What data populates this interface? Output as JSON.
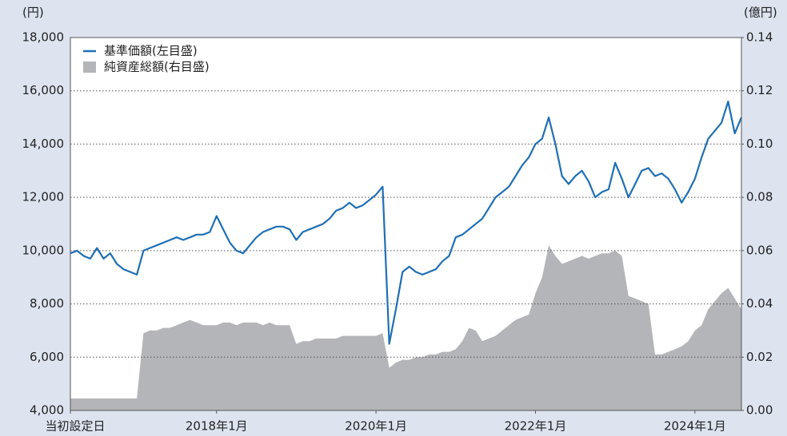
{
  "chart_data": {
    "type": "line-area",
    "y_label": "(円)",
    "y2_label": "(億円)",
    "x": [
      "2016-03",
      "2016-04",
      "2016-05",
      "2016-06",
      "2016-07",
      "2016-08",
      "2016-09",
      "2016-10",
      "2016-11",
      "2016-12",
      "2017-01",
      "2017-02",
      "2017-03",
      "2017-04",
      "2017-05",
      "2017-06",
      "2017-07",
      "2017-08",
      "2017-09",
      "2017-10",
      "2017-11",
      "2017-12",
      "2018-01",
      "2018-02",
      "2018-03",
      "2018-04",
      "2018-05",
      "2018-06",
      "2018-07",
      "2018-08",
      "2018-09",
      "2018-10",
      "2018-11",
      "2018-12",
      "2019-01",
      "2019-02",
      "2019-03",
      "2019-04",
      "2019-05",
      "2019-06",
      "2019-07",
      "2019-08",
      "2019-09",
      "2019-10",
      "2019-11",
      "2019-12",
      "2020-01",
      "2020-02",
      "2020-03",
      "2020-04",
      "2020-05",
      "2020-06",
      "2020-07",
      "2020-08",
      "2020-09",
      "2020-10",
      "2020-11",
      "2020-12",
      "2021-01",
      "2021-02",
      "2021-03",
      "2021-04",
      "2021-05",
      "2021-06",
      "2021-07",
      "2021-08",
      "2021-09",
      "2021-10",
      "2021-11",
      "2021-12",
      "2022-01",
      "2022-02",
      "2022-03",
      "2022-04",
      "2022-05",
      "2022-06",
      "2022-07",
      "2022-08",
      "2022-09",
      "2022-10",
      "2022-11",
      "2022-12",
      "2023-01",
      "2023-02",
      "2023-03",
      "2023-04",
      "2023-05",
      "2023-06",
      "2023-07",
      "2023-08",
      "2023-09",
      "2023-10",
      "2023-11",
      "2023-12",
      "2024-01",
      "2024-02",
      "2024-03",
      "2024-04",
      "2024-05",
      "2024-06",
      "2024-07",
      "2024-08"
    ],
    "series": [
      {
        "name": "基準価額(左目盛)",
        "color": "#1f6fb5",
        "axis": "y",
        "kind": "line",
        "values": [
          9900,
          10000,
          9800,
          9700,
          10100,
          9700,
          9900,
          9500,
          9300,
          9200,
          9100,
          10000,
          10100,
          10200,
          10300,
          10400,
          10500,
          10400,
          10500,
          10600,
          10600,
          10700,
          11300,
          10800,
          10300,
          10000,
          9900,
          10200,
          10500,
          10700,
          10800,
          10900,
          10900,
          10800,
          10400,
          10700,
          10800,
          10900,
          11000,
          11200,
          11500,
          11600,
          11800,
          11600,
          11700,
          11900,
          12100,
          12400,
          6500,
          7800,
          9200,
          9400,
          9200,
          9100,
          9200,
          9300,
          9600,
          9800,
          10500,
          10600,
          10800,
          11000,
          11200,
          11600,
          12000,
          12200,
          12400,
          12800,
          13200,
          13500,
          14000,
          14200,
          15000,
          14000,
          12800,
          12500,
          12800,
          13000,
          12600,
          12000,
          12200,
          12300,
          13300,
          12700,
          12000,
          12500,
          13000,
          13100,
          12800,
          12900,
          12700,
          12300,
          11800,
          12200,
          12700,
          13500,
          14200,
          14500,
          14800,
          15600,
          14400,
          15000
        ]
      },
      {
        "name": "純資産総額(右目盛)",
        "color": "#b4b5b8",
        "axis": "y2",
        "kind": "area",
        "values": [
          0.0045,
          0.0045,
          0.0045,
          0.0045,
          0.0045,
          0.0045,
          0.0045,
          0.0045,
          0.0045,
          0.0045,
          0.0045,
          0.029,
          0.03,
          0.03,
          0.031,
          0.031,
          0.032,
          0.033,
          0.034,
          0.033,
          0.032,
          0.032,
          0.032,
          0.033,
          0.033,
          0.032,
          0.033,
          0.033,
          0.033,
          0.032,
          0.033,
          0.032,
          0.032,
          0.032,
          0.025,
          0.026,
          0.026,
          0.027,
          0.027,
          0.027,
          0.027,
          0.028,
          0.028,
          0.028,
          0.028,
          0.028,
          0.028,
          0.029,
          0.016,
          0.018,
          0.019,
          0.019,
          0.02,
          0.02,
          0.021,
          0.021,
          0.022,
          0.022,
          0.023,
          0.026,
          0.031,
          0.03,
          0.026,
          0.027,
          0.028,
          0.03,
          0.032,
          0.034,
          0.035,
          0.036,
          0.044,
          0.05,
          0.062,
          0.058,
          0.055,
          0.056,
          0.057,
          0.058,
          0.057,
          0.058,
          0.059,
          0.059,
          0.06,
          0.058,
          0.043,
          0.042,
          0.041,
          0.04,
          0.021,
          0.021,
          0.022,
          0.023,
          0.024,
          0.026,
          0.03,
          0.032,
          0.038,
          0.041,
          0.044,
          0.046,
          0.042,
          0.038
        ]
      }
    ],
    "xlim": [
      "2016-03",
      "2024-08"
    ],
    "xticks": [
      {
        "value": "2016-03",
        "label": "当初設定日"
      },
      {
        "value": "2018-01",
        "label": "2018年1月"
      },
      {
        "value": "2020-01",
        "label": "2020年1月"
      },
      {
        "value": "2022-01",
        "label": "2022年1月"
      },
      {
        "value": "2024-01",
        "label": "2024年1月"
      }
    ],
    "ylim": [
      4000,
      18000
    ],
    "yticks": [
      {
        "value": 4000,
        "label": "4,000"
      },
      {
        "value": 6000,
        "label": "6,000"
      },
      {
        "value": 8000,
        "label": "8,000"
      },
      {
        "value": 10000,
        "label": "10,000"
      },
      {
        "value": 12000,
        "label": "12,000"
      },
      {
        "value": 14000,
        "label": "14,000"
      },
      {
        "value": 16000,
        "label": "16,000"
      },
      {
        "value": 18000,
        "label": "18,000"
      }
    ],
    "y2lim": [
      0,
      0.14
    ],
    "y2ticks": [
      {
        "value": 0,
        "label": "0.00"
      },
      {
        "value": 0.02,
        "label": "0.02"
      },
      {
        "value": 0.04,
        "label": "0.04"
      },
      {
        "value": 0.06,
        "label": "0.06"
      },
      {
        "value": 0.08,
        "label": "0.08"
      },
      {
        "value": 0.1,
        "label": "0.10"
      },
      {
        "value": 0.12,
        "label": "0.12"
      },
      {
        "value": 0.14,
        "label": "0.14"
      }
    ],
    "grid": true,
    "legend": "upper left"
  }
}
